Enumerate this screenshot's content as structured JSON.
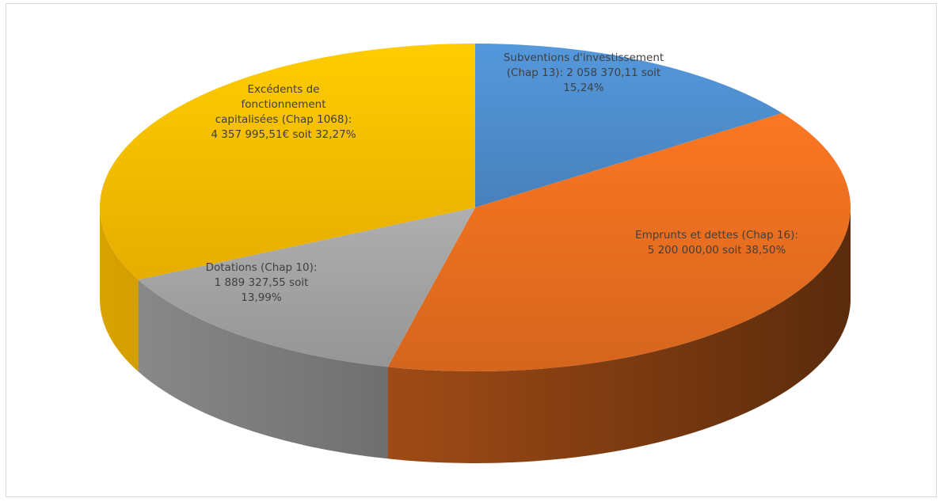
{
  "chart_data": {
    "type": "pie",
    "title": "",
    "units": "€",
    "slices": [
      {
        "label": "Subventions d'investissement (Chap 13)",
        "value": 2058370.11,
        "percent": 15.24,
        "color": "#4f8fd0",
        "label_lines": [
          "Subventions d'investissement",
          "(Chap 13): 2 058 370,11 soit",
          "15,24%"
        ],
        "label_color": "#404040"
      },
      {
        "label": "Emprunts et dettes (Chap 16)",
        "value": 5200000.0,
        "percent": 38.5,
        "color": "#ed7020",
        "label_lines": [
          "Emprunts et dettes (Chap 16):",
          "5 200 000,00 soit 38,50%"
        ],
        "label_color": "#404040"
      },
      {
        "label": "Dotations (Chap 10)",
        "value": 1889327.55,
        "percent": 13.99,
        "color": "#a5a5a5",
        "label_lines": [
          "Dotations (Chap 10):",
          "1 889 327,55 soit",
          "13,99%"
        ],
        "label_color": "#404040"
      },
      {
        "label": "Excédents de fonctionnement capitalisées (Chap 1068)",
        "value": 4357995.51,
        "percent": 32.27,
        "color": "#ffc000",
        "label_lines": [
          "Excédents de",
          "fonctionnement",
          "capitalisées (Chap 1068):",
          "4 357 995,51€ soit 32,27%"
        ],
        "label_color": "#404040"
      }
    ],
    "style": "3d-pie",
    "start_angle_deg": 90,
    "direction": "clockwise",
    "legend": "none",
    "data_labels": "inside"
  }
}
